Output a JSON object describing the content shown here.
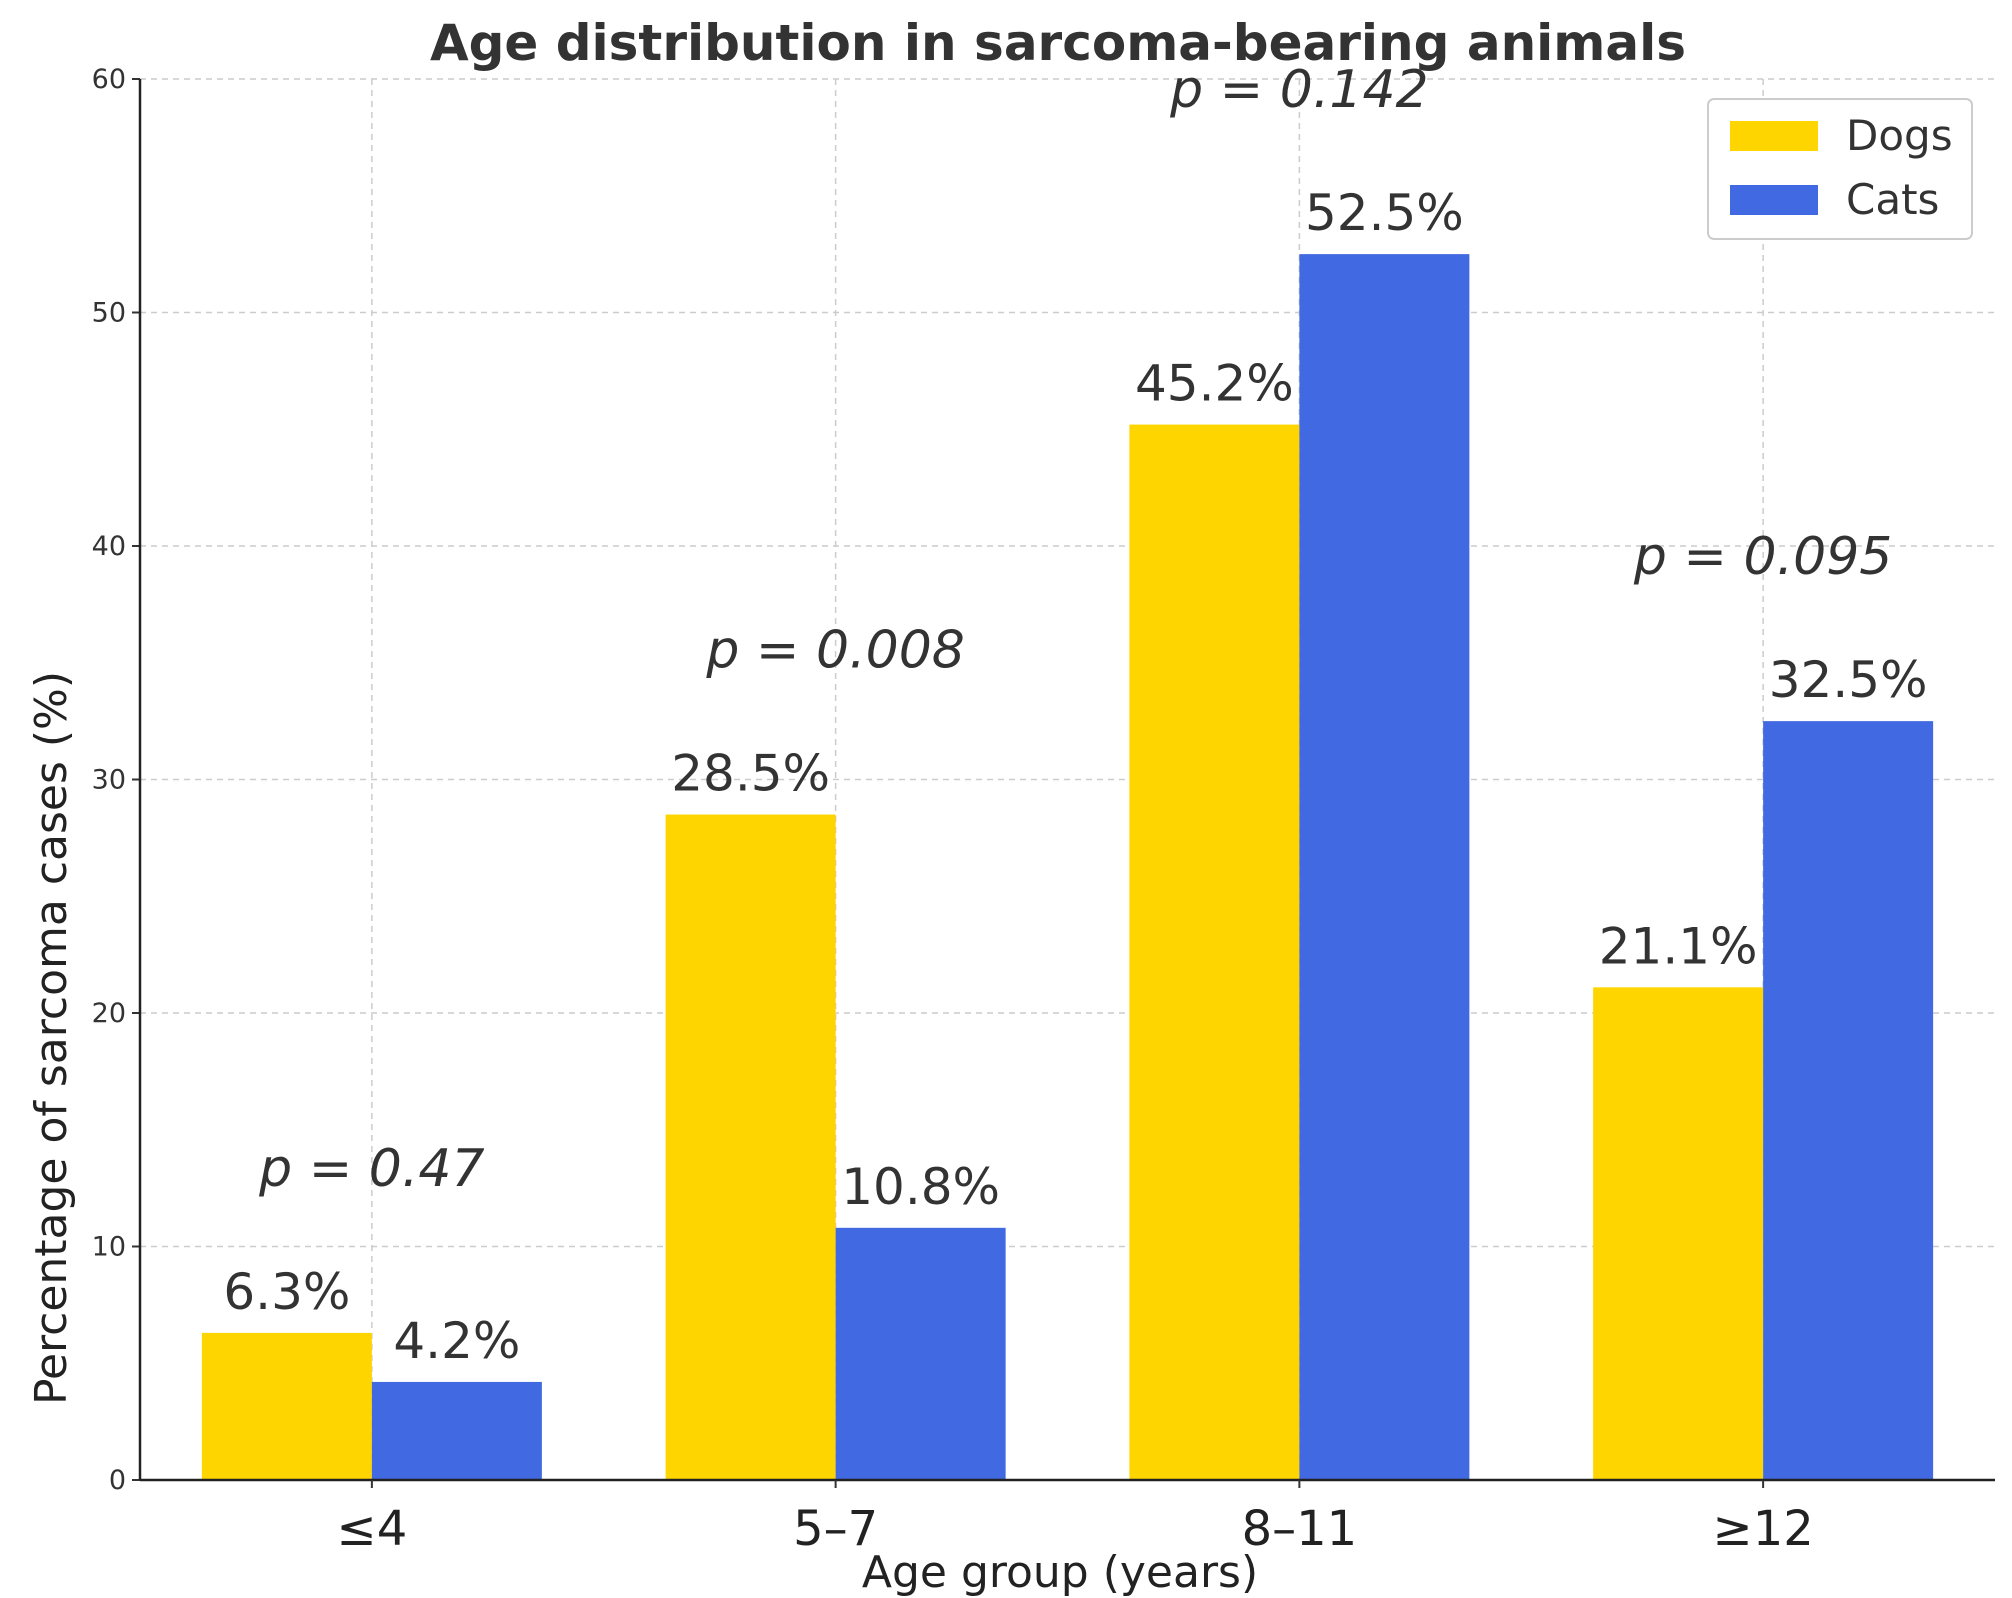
{
  "chart_data": {
    "type": "bar",
    "title": "Age distribution in sarcoma-bearing animals",
    "xlabel": "Age group (years)",
    "ylabel": "Percentage of sarcoma cases (%)",
    "ylim": [
      0,
      60
    ],
    "yticks": [
      0,
      10,
      20,
      30,
      40,
      50,
      60
    ],
    "grid": true,
    "legend_position": "top-right",
    "categories": [
      "≤4",
      "5–7",
      "8–11",
      "≥12"
    ],
    "series": [
      {
        "name": "Dogs",
        "color": "#FFD500",
        "values": [
          6.3,
          28.5,
          45.2,
          21.1
        ],
        "labels": [
          "6.3%",
          "28.5%",
          "45.2%",
          "21.1%"
        ]
      },
      {
        "name": "Cats",
        "color": "#4169E1",
        "values": [
          4.2,
          10.8,
          52.5,
          32.5
        ],
        "labels": [
          "4.2%",
          "10.8%",
          "52.5%",
          "32.5%"
        ]
      }
    ],
    "annotations": [
      {
        "category": "≤4",
        "text": "p = 0.47",
        "y": 12.6
      },
      {
        "category": "5–7",
        "text": "p = 0.008",
        "y": 34.8
      },
      {
        "category": "8–11",
        "text": "p = 0.142",
        "y": 58.8
      },
      {
        "category": "≥12",
        "text": "p = 0.095",
        "y": 38.8
      }
    ]
  }
}
